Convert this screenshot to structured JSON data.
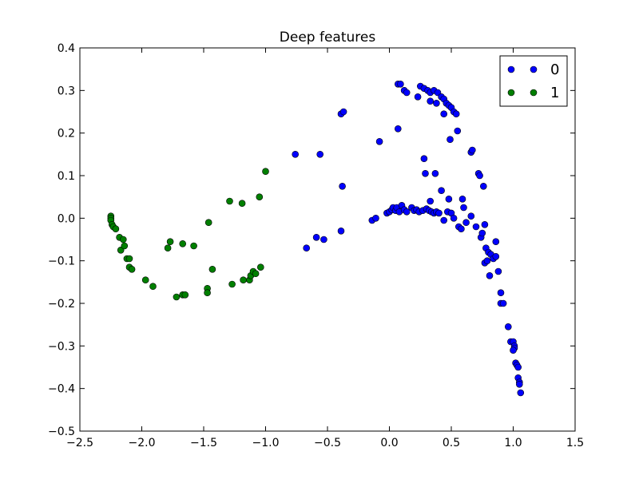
{
  "chart_data": {
    "type": "scatter",
    "title": "Deep features",
    "xlabel": "",
    "ylabel": "",
    "xlim": [
      -2.5,
      1.5
    ],
    "ylim": [
      -0.5,
      0.4
    ],
    "xticks": [
      "−2.5",
      "−2.0",
      "−1.5",
      "−1.0",
      "−0.5",
      "0.0",
      "0.5",
      "1.0",
      "1.5"
    ],
    "yticks": [
      "0.4",
      "0.3",
      "0.2",
      "0.1",
      "0.0",
      "−0.1",
      "−0.2",
      "−0.3",
      "−0.4",
      "−0.5"
    ],
    "xtick_values": [
      -2.5,
      -2.0,
      -1.5,
      -1.0,
      -0.5,
      0.0,
      0.5,
      1.0,
      1.5
    ],
    "ytick_values": [
      0.4,
      0.3,
      0.2,
      0.1,
      0.0,
      -0.1,
      -0.2,
      -0.3,
      -0.4,
      -0.5
    ],
    "grid": false,
    "legend_position": "top-right",
    "series": [
      {
        "name": "0",
        "color": "#0000ff",
        "points": [
          [
            -0.76,
            0.15
          ],
          [
            -0.56,
            0.15
          ],
          [
            -0.39,
            0.245
          ],
          [
            -0.37,
            0.25
          ],
          [
            -0.38,
            0.075
          ],
          [
            -0.08,
            0.18
          ],
          [
            0.07,
            0.21
          ],
          [
            0.07,
            0.315
          ],
          [
            0.09,
            0.315
          ],
          [
            0.12,
            0.3
          ],
          [
            0.14,
            0.295
          ],
          [
            0.25,
            0.31
          ],
          [
            0.28,
            0.305
          ],
          [
            0.31,
            0.3
          ],
          [
            0.33,
            0.295
          ],
          [
            0.36,
            0.3
          ],
          [
            0.39,
            0.295
          ],
          [
            0.42,
            0.285
          ],
          [
            0.44,
            0.28
          ],
          [
            0.46,
            0.27
          ],
          [
            0.48,
            0.265
          ],
          [
            0.5,
            0.26
          ],
          [
            0.52,
            0.25
          ],
          [
            0.54,
            0.245
          ],
          [
            0.23,
            0.285
          ],
          [
            0.33,
            0.275
          ],
          [
            0.38,
            0.27
          ],
          [
            0.44,
            0.245
          ],
          [
            0.55,
            0.205
          ],
          [
            0.49,
            0.185
          ],
          [
            0.28,
            0.14
          ],
          [
            0.29,
            0.105
          ],
          [
            0.37,
            0.105
          ],
          [
            0.42,
            0.065
          ],
          [
            0.48,
            0.045
          ],
          [
            0.59,
            0.045
          ],
          [
            0.33,
            0.04
          ],
          [
            0.6,
            0.025
          ],
          [
            -0.67,
            -0.07
          ],
          [
            -0.59,
            -0.045
          ],
          [
            -0.53,
            -0.05
          ],
          [
            -0.39,
            -0.03
          ],
          [
            -0.14,
            -0.005
          ],
          [
            -0.11,
            0.0
          ],
          [
            -0.02,
            0.012
          ],
          [
            0.0,
            0.015
          ],
          [
            0.02,
            0.02
          ],
          [
            0.03,
            0.025
          ],
          [
            0.05,
            0.018
          ],
          [
            0.06,
            0.025
          ],
          [
            0.08,
            0.015
          ],
          [
            0.1,
            0.03
          ],
          [
            0.12,
            0.02
          ],
          [
            0.14,
            0.015
          ],
          [
            0.18,
            0.025
          ],
          [
            0.2,
            0.018
          ],
          [
            0.22,
            0.02
          ],
          [
            0.24,
            0.015
          ],
          [
            0.27,
            0.018
          ],
          [
            0.3,
            0.022
          ],
          [
            0.32,
            0.018
          ],
          [
            0.34,
            0.015
          ],
          [
            0.36,
            0.012
          ],
          [
            0.38,
            0.015
          ],
          [
            0.4,
            0.012
          ],
          [
            0.44,
            -0.005
          ],
          [
            0.47,
            0.015
          ],
          [
            0.5,
            0.012
          ],
          [
            0.52,
            0.0
          ],
          [
            0.56,
            -0.02
          ],
          [
            0.58,
            -0.025
          ],
          [
            0.62,
            -0.01
          ],
          [
            0.66,
            0.005
          ],
          [
            0.7,
            -0.02
          ],
          [
            0.74,
            -0.045
          ],
          [
            0.77,
            -0.015
          ],
          [
            0.78,
            -0.07
          ],
          [
            0.8,
            -0.08
          ],
          [
            0.82,
            -0.085
          ],
          [
            0.84,
            -0.095
          ],
          [
            0.86,
            -0.055
          ],
          [
            0.86,
            -0.09
          ],
          [
            0.77,
            -0.105
          ],
          [
            0.79,
            -0.1
          ],
          [
            0.81,
            -0.135
          ],
          [
            0.88,
            -0.125
          ],
          [
            0.9,
            -0.175
          ],
          [
            0.9,
            -0.2
          ],
          [
            0.92,
            -0.2
          ],
          [
            0.96,
            -0.255
          ],
          [
            0.98,
            -0.29
          ],
          [
            1.0,
            -0.29
          ],
          [
            1.01,
            -0.3
          ],
          [
            1.01,
            -0.305
          ],
          [
            1.0,
            -0.31
          ],
          [
            1.02,
            -0.34
          ],
          [
            1.03,
            -0.345
          ],
          [
            1.04,
            -0.35
          ],
          [
            1.04,
            -0.375
          ],
          [
            1.05,
            -0.385
          ],
          [
            1.05,
            -0.39
          ],
          [
            1.06,
            -0.41
          ],
          [
            0.66,
            0.155
          ],
          [
            0.67,
            0.16
          ],
          [
            0.72,
            0.105
          ],
          [
            0.73,
            0.1
          ],
          [
            0.76,
            0.075
          ],
          [
            0.75,
            -0.035
          ]
        ]
      },
      {
        "name": "1",
        "color": "#007f00",
        "points": [
          [
            -2.25,
            0.005
          ],
          [
            -2.25,
            0.0
          ],
          [
            -2.25,
            -0.005
          ],
          [
            -2.24,
            -0.015
          ],
          [
            -2.23,
            -0.02
          ],
          [
            -2.21,
            -0.025
          ],
          [
            -2.18,
            -0.045
          ],
          [
            -2.15,
            -0.05
          ],
          [
            -2.17,
            -0.075
          ],
          [
            -2.14,
            -0.065
          ],
          [
            -2.12,
            -0.095
          ],
          [
            -2.1,
            -0.095
          ],
          [
            -2.1,
            -0.115
          ],
          [
            -2.08,
            -0.12
          ],
          [
            -1.97,
            -0.145
          ],
          [
            -1.91,
            -0.16
          ],
          [
            -1.79,
            -0.07
          ],
          [
            -1.77,
            -0.055
          ],
          [
            -1.72,
            -0.185
          ],
          [
            -1.67,
            -0.18
          ],
          [
            -1.65,
            -0.18
          ],
          [
            -1.67,
            -0.06
          ],
          [
            -1.58,
            -0.065
          ],
          [
            -1.47,
            -0.165
          ],
          [
            -1.47,
            -0.175
          ],
          [
            -1.46,
            -0.01
          ],
          [
            -1.43,
            -0.12
          ],
          [
            -1.29,
            0.04
          ],
          [
            -1.27,
            -0.155
          ],
          [
            -1.19,
            0.035
          ],
          [
            -1.18,
            -0.145
          ],
          [
            -1.13,
            -0.145
          ],
          [
            -1.12,
            -0.135
          ],
          [
            -1.1,
            -0.125
          ],
          [
            -1.08,
            -0.13
          ],
          [
            -1.05,
            0.05
          ],
          [
            -1.04,
            -0.115
          ],
          [
            -1.0,
            0.11
          ]
        ]
      }
    ]
  }
}
